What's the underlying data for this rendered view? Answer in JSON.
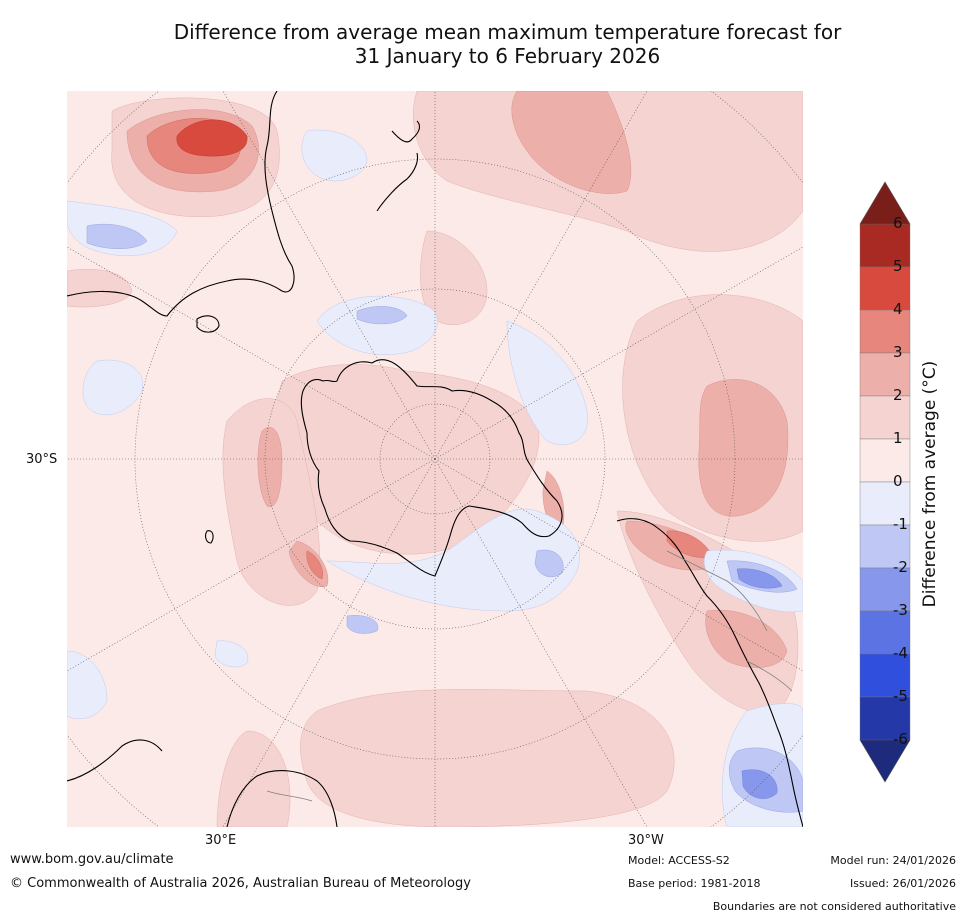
{
  "title": {
    "line1": "Difference from average mean maximum temperature forecast for",
    "line2": "31 January to 6 February 2026"
  },
  "map": {
    "projection": "south-polar-stereographic",
    "labels": {
      "lat_30s": "30°S",
      "lon_30e": "30°E",
      "lon_30w": "30°W"
    },
    "colors": {
      "ocean_base": "#fbeae8",
      "coast": "#000000",
      "border": "#808080",
      "graticule": "#555555"
    }
  },
  "colorbar": {
    "label": "Difference from average (°C)",
    "ticks": [
      "6",
      "5",
      "4",
      "3",
      "2",
      "1",
      "0",
      "-1",
      "-2",
      "-3",
      "-4",
      "-5",
      "-6"
    ],
    "bins": [
      {
        "range": [
          6,
          7
        ],
        "color": "#7a1e1a"
      },
      {
        "range": [
          5,
          6
        ],
        "color": "#a92a22"
      },
      {
        "range": [
          4,
          5
        ],
        "color": "#d94a3e"
      },
      {
        "range": [
          3,
          4
        ],
        "color": "#e7867c"
      },
      {
        "range": [
          2,
          3
        ],
        "color": "#edafa9"
      },
      {
        "range": [
          1,
          2
        ],
        "color": "#f5d3d1"
      },
      {
        "range": [
          0,
          1
        ],
        "color": "#fbeae8"
      },
      {
        "range": [
          -1,
          0
        ],
        "color": "#e8ecfb"
      },
      {
        "range": [
          -2,
          -1
        ],
        "color": "#bfc8f4"
      },
      {
        "range": [
          -3,
          -2
        ],
        "color": "#8798ec"
      },
      {
        "range": [
          -4,
          -3
        ],
        "color": "#5b73e3"
      },
      {
        "range": [
          -5,
          -4
        ],
        "color": "#2f4fdc"
      },
      {
        "range": [
          -6,
          -5
        ],
        "color": "#2438a8"
      },
      {
        "range": [
          -7,
          -6
        ],
        "color": "#1e2a7c"
      }
    ]
  },
  "footer": {
    "website": "www.bom.gov.au/climate",
    "copyright": "© Commonwealth of Australia 2026, Australian Bureau of Meteorology",
    "model": "Model: ACCESS-S2",
    "base_period": "Base period: 1981-2018",
    "model_run": "Model run: 24/01/2026",
    "issued": "Issued: 26/01/2026",
    "disclaimer": "Boundaries are not considered authoritative"
  }
}
